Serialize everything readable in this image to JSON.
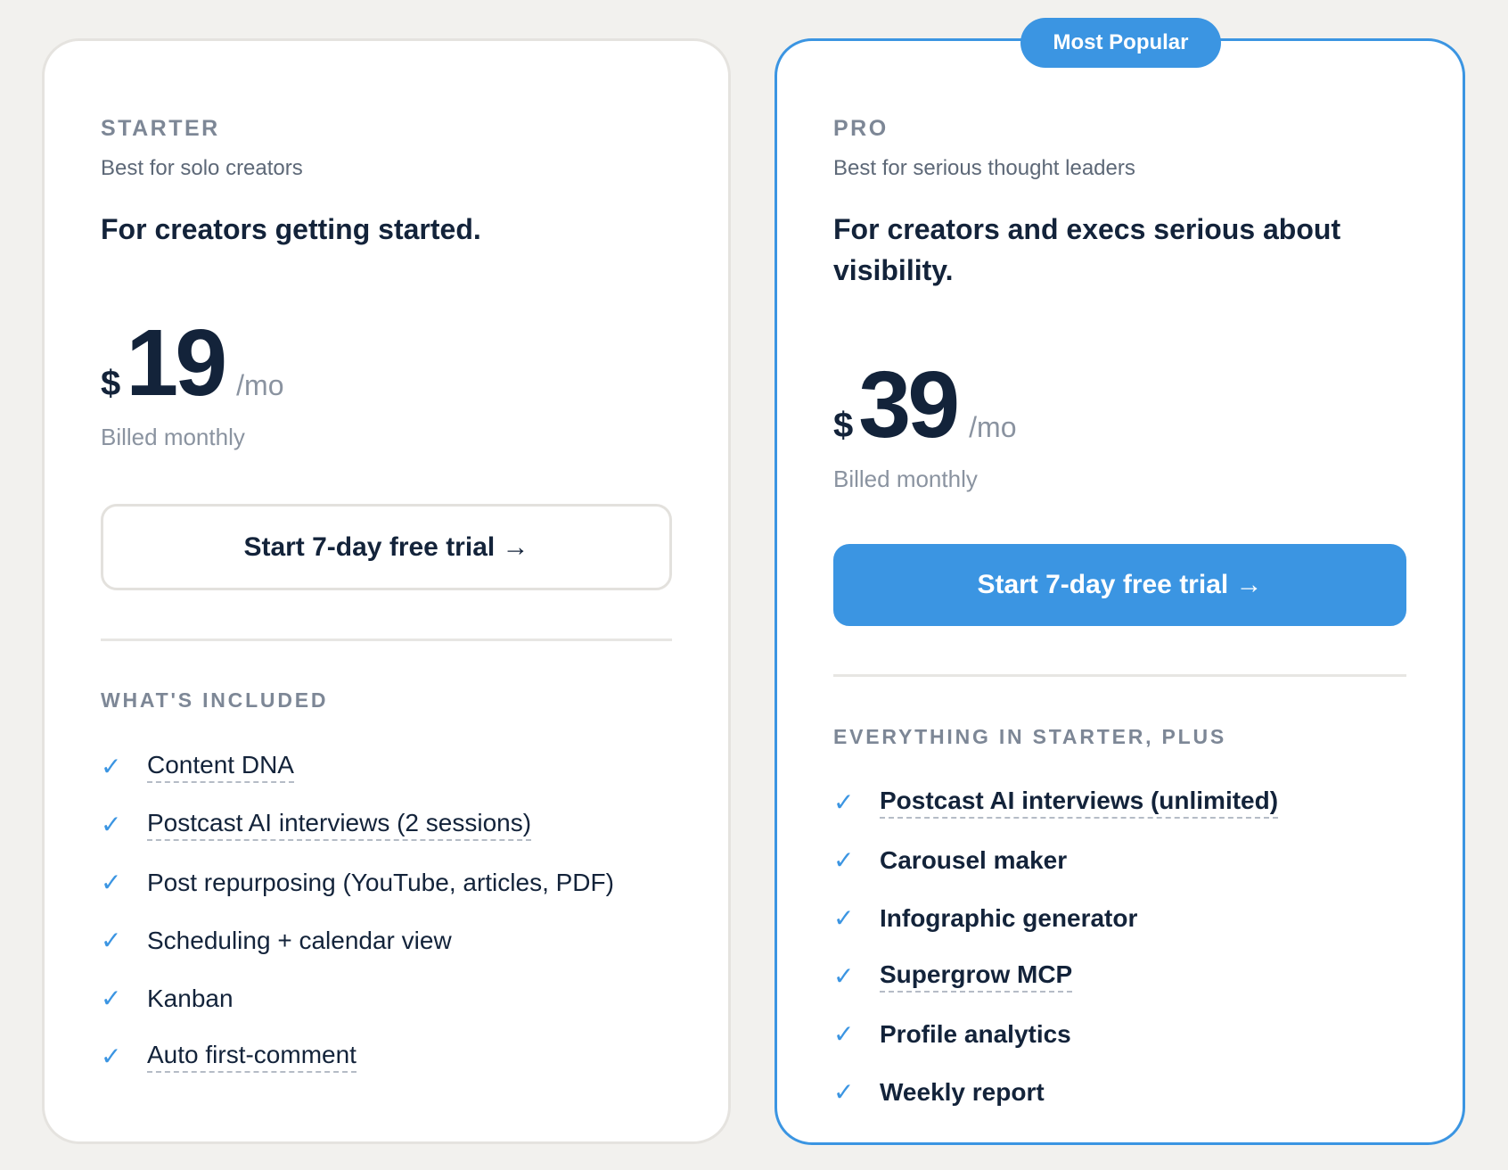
{
  "plans": {
    "starter": {
      "tier": "STARTER",
      "subtitle": "Best for solo creators",
      "tagline": "For creators getting started.",
      "currency": "$",
      "amount": "19",
      "per": "/mo",
      "billed": "Billed monthly",
      "cta": "Start 7-day free trial →",
      "section_label": "WHAT'S INCLUDED",
      "features": [
        "Content DNA",
        "Postcast AI interviews (2 sessions)",
        "Post repurposing (YouTube, articles, PDF)",
        "Scheduling + calendar view",
        "Kanban",
        "Auto first-comment"
      ]
    },
    "pro": {
      "badge": "Most Popular",
      "tier": "PRO",
      "subtitle": "Best for serious thought leaders",
      "tagline": "For creators and execs serious about visibility.",
      "currency": "$",
      "amount": "39",
      "per": "/mo",
      "billed": "Billed monthly",
      "cta": "Start 7-day free trial →",
      "section_label": "EVERYTHING IN STARTER, PLUS",
      "features": [
        "Postcast AI interviews (unlimited)",
        "Carousel maker",
        "Infographic generator",
        "Supergrow MCP",
        "Profile analytics",
        "Weekly report"
      ]
    }
  },
  "check_icon": "checkmark-icon",
  "colors": {
    "accent": "#3b95e2",
    "text": "#13233a",
    "muted": "#8a93a0",
    "background": "#f2f1ee"
  }
}
